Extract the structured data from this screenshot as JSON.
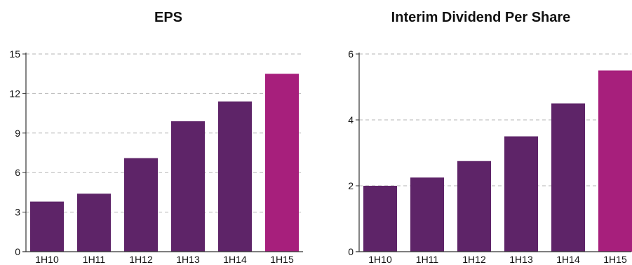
{
  "chart_data": [
    {
      "type": "bar",
      "title": "EPS",
      "categories": [
        "1H10",
        "1H11",
        "1H12",
        "1H13",
        "1H14",
        "1H15"
      ],
      "values": [
        3.8,
        4.4,
        7.1,
        9.9,
        11.4,
        13.5
      ],
      "colors": [
        "#5e2468",
        "#5e2468",
        "#5e2468",
        "#5e2468",
        "#5e2468",
        "#a71f7c"
      ],
      "ylim": [
        0,
        15
      ],
      "yticks": [
        0,
        3,
        6,
        9,
        12,
        15
      ],
      "grid": "dashed horizontal",
      "xlabel": "",
      "ylabel": ""
    },
    {
      "type": "bar",
      "title": "Interim Dividend Per Share",
      "categories": [
        "1H10",
        "1H11",
        "1H12",
        "1H13",
        "1H14",
        "1H15"
      ],
      "values": [
        2.0,
        2.25,
        2.75,
        3.5,
        4.5,
        5.5
      ],
      "colors": [
        "#5e2468",
        "#5e2468",
        "#5e2468",
        "#5e2468",
        "#5e2468",
        "#a71f7c"
      ],
      "ylim": [
        0,
        6
      ],
      "yticks": [
        0,
        2,
        4,
        6
      ],
      "grid": "dashed horizontal",
      "xlabel": "",
      "ylabel": ""
    }
  ]
}
